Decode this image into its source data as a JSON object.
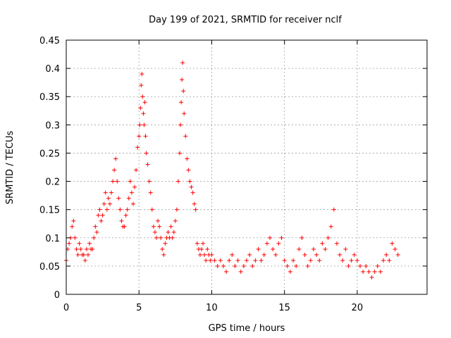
{
  "chart_data": {
    "type": "scatter",
    "title": "Day 199 of 2021, SRMTID for receiver nclf",
    "xlabel": "GPS time / hours",
    "ylabel": "SRMTID / TECUs",
    "xlim": [
      0,
      24.8
    ],
    "ylim": [
      0,
      0.45
    ],
    "xticks": [
      0,
      5,
      10,
      15,
      20
    ],
    "xtick_labels": [
      "0",
      "5",
      "10",
      "15",
      "20"
    ],
    "yticks": [
      0,
      0.05,
      0.1,
      0.15,
      0.2,
      0.25,
      0.3,
      0.35,
      0.4,
      0.45
    ],
    "ytick_labels": [
      "0",
      "0.05",
      "0.1",
      "0.15",
      "0.2",
      "0.25",
      "0.3",
      "0.35",
      "0.4",
      "0.45"
    ],
    "grid": true,
    "marker": "+",
    "color": "#ff0000",
    "series": [
      {
        "name": "SRMTID",
        "x": [
          0.0,
          0.1,
          0.2,
          0.3,
          0.4,
          0.5,
          0.6,
          0.7,
          0.8,
          0.9,
          1.0,
          1.1,
          1.2,
          1.3,
          1.4,
          1.5,
          1.6,
          1.7,
          1.8,
          1.9,
          2.0,
          2.1,
          2.2,
          2.3,
          2.4,
          2.5,
          2.6,
          2.7,
          2.8,
          2.9,
          3.0,
          3.1,
          3.2,
          3.3,
          3.4,
          3.5,
          3.6,
          3.7,
          3.8,
          3.9,
          4.0,
          4.1,
          4.2,
          4.3,
          4.4,
          4.5,
          4.6,
          4.7,
          4.8,
          4.9,
          5.0,
          5.05,
          5.1,
          5.15,
          5.2,
          5.25,
          5.3,
          5.35,
          5.4,
          5.45,
          5.5,
          5.6,
          5.7,
          5.8,
          5.9,
          6.0,
          6.1,
          6.2,
          6.3,
          6.4,
          6.5,
          6.6,
          6.7,
          6.8,
          6.9,
          7.0,
          7.1,
          7.2,
          7.3,
          7.4,
          7.5,
          7.6,
          7.7,
          7.8,
          7.85,
          7.9,
          7.95,
          8.0,
          8.05,
          8.1,
          8.2,
          8.3,
          8.4,
          8.5,
          8.6,
          8.7,
          8.8,
          8.9,
          9.0,
          9.1,
          9.2,
          9.3,
          9.4,
          9.5,
          9.6,
          9.7,
          9.8,
          9.9,
          10.0,
          10.2,
          10.4,
          10.6,
          10.8,
          11.0,
          11.2,
          11.4,
          11.6,
          11.8,
          12.0,
          12.2,
          12.4,
          12.6,
          12.8,
          13.0,
          13.2,
          13.4,
          13.6,
          13.8,
          14.0,
          14.2,
          14.4,
          14.6,
          14.8,
          15.0,
          15.2,
          15.4,
          15.6,
          15.8,
          16.0,
          16.2,
          16.4,
          16.6,
          16.8,
          17.0,
          17.2,
          17.4,
          17.6,
          17.8,
          18.0,
          18.2,
          18.4,
          18.6,
          18.8,
          19.0,
          19.2,
          19.4,
          19.6,
          19.8,
          20.0,
          20.2,
          20.4,
          20.6,
          20.8,
          21.0,
          21.2,
          21.4,
          21.6,
          21.8,
          22.0,
          22.2,
          22.4,
          22.6,
          22.8
        ],
        "y": [
          0.06,
          0.08,
          0.09,
          0.1,
          0.12,
          0.13,
          0.1,
          0.08,
          0.07,
          0.09,
          0.08,
          0.07,
          0.07,
          0.06,
          0.08,
          0.07,
          0.09,
          0.08,
          0.08,
          0.1,
          0.12,
          0.11,
          0.14,
          0.15,
          0.13,
          0.14,
          0.16,
          0.18,
          0.15,
          0.17,
          0.16,
          0.18,
          0.2,
          0.22,
          0.24,
          0.2,
          0.17,
          0.15,
          0.13,
          0.12,
          0.12,
          0.14,
          0.15,
          0.17,
          0.2,
          0.18,
          0.16,
          0.19,
          0.22,
          0.26,
          0.28,
          0.3,
          0.33,
          0.37,
          0.39,
          0.35,
          0.32,
          0.3,
          0.34,
          0.28,
          0.25,
          0.23,
          0.2,
          0.18,
          0.15,
          0.12,
          0.11,
          0.1,
          0.13,
          0.12,
          0.1,
          0.08,
          0.07,
          0.09,
          0.1,
          0.11,
          0.1,
          0.12,
          0.1,
          0.11,
          0.13,
          0.15,
          0.2,
          0.25,
          0.3,
          0.34,
          0.38,
          0.41,
          0.36,
          0.32,
          0.28,
          0.24,
          0.22,
          0.2,
          0.19,
          0.18,
          0.16,
          0.15,
          0.09,
          0.08,
          0.07,
          0.08,
          0.09,
          0.07,
          0.06,
          0.08,
          0.07,
          0.06,
          0.07,
          0.06,
          0.05,
          0.06,
          0.05,
          0.04,
          0.06,
          0.07,
          0.05,
          0.06,
          0.04,
          0.05,
          0.06,
          0.07,
          0.05,
          0.06,
          0.08,
          0.06,
          0.07,
          0.09,
          0.1,
          0.08,
          0.07,
          0.09,
          0.1,
          0.06,
          0.05,
          0.04,
          0.06,
          0.05,
          0.08,
          0.1,
          0.07,
          0.05,
          0.06,
          0.08,
          0.07,
          0.06,
          0.09,
          0.08,
          0.1,
          0.12,
          0.15,
          0.09,
          0.07,
          0.06,
          0.08,
          0.05,
          0.06,
          0.07,
          0.06,
          0.05,
          0.04,
          0.05,
          0.04,
          0.03,
          0.04,
          0.05,
          0.04,
          0.06,
          0.07,
          0.06,
          0.09,
          0.08,
          0.07
        ]
      }
    ]
  }
}
